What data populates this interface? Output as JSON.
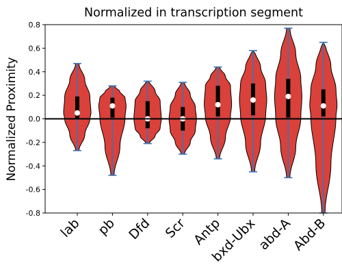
{
  "chart_data": {
    "type": "violin",
    "title": "Normalized in transcription segment",
    "xlabel": "",
    "ylabel": "Normalized Proximity",
    "ylim": [
      -0.8,
      0.8
    ],
    "yticks": [
      "-0.8",
      "-0.6",
      "-0.4",
      "-0.2",
      "0.0",
      "0.2",
      "0.4",
      "0.6",
      "0.8"
    ],
    "reference_line_y": 0.0,
    "grid": false,
    "colors": {
      "violin_fill": "#d9413a",
      "violin_edge": "#000000",
      "whisker": "#3b73b9",
      "box": "#000000",
      "median": "#ffffff",
      "zero_line": "#000000"
    },
    "categories": [
      "lab",
      "pb",
      "Dfd",
      "Scr",
      "Antp",
      "bxd-Ubx",
      "abd-A",
      "Abd-B"
    ],
    "stats": [
      {
        "category": "lab",
        "min": -0.27,
        "q1": 0.0,
        "median": 0.05,
        "q3": 0.19,
        "max": 0.47
      },
      {
        "category": "pb",
        "min": -0.48,
        "q1": 0.01,
        "median": 0.11,
        "q3": 0.18,
        "max": 0.28
      },
      {
        "category": "Dfd",
        "min": -0.21,
        "q1": -0.08,
        "median": 0.0,
        "q3": 0.15,
        "max": 0.32
      },
      {
        "category": "Scr",
        "min": -0.3,
        "q1": -0.1,
        "median": 0.0,
        "q3": 0.1,
        "max": 0.31
      },
      {
        "category": "Antp",
        "min": -0.34,
        "q1": 0.02,
        "median": 0.12,
        "q3": 0.28,
        "max": 0.44
      },
      {
        "category": "bxd-Ubx",
        "min": -0.45,
        "q1": 0.03,
        "median": 0.16,
        "q3": 0.3,
        "max": 0.58
      },
      {
        "category": "abd-A",
        "min": -0.5,
        "q1": 0.01,
        "median": 0.19,
        "q3": 0.34,
        "max": 0.77
      },
      {
        "category": "Abd-B",
        "min": -0.8,
        "q1": 0.02,
        "median": 0.11,
        "q3": 0.25,
        "max": 0.65
      }
    ]
  }
}
